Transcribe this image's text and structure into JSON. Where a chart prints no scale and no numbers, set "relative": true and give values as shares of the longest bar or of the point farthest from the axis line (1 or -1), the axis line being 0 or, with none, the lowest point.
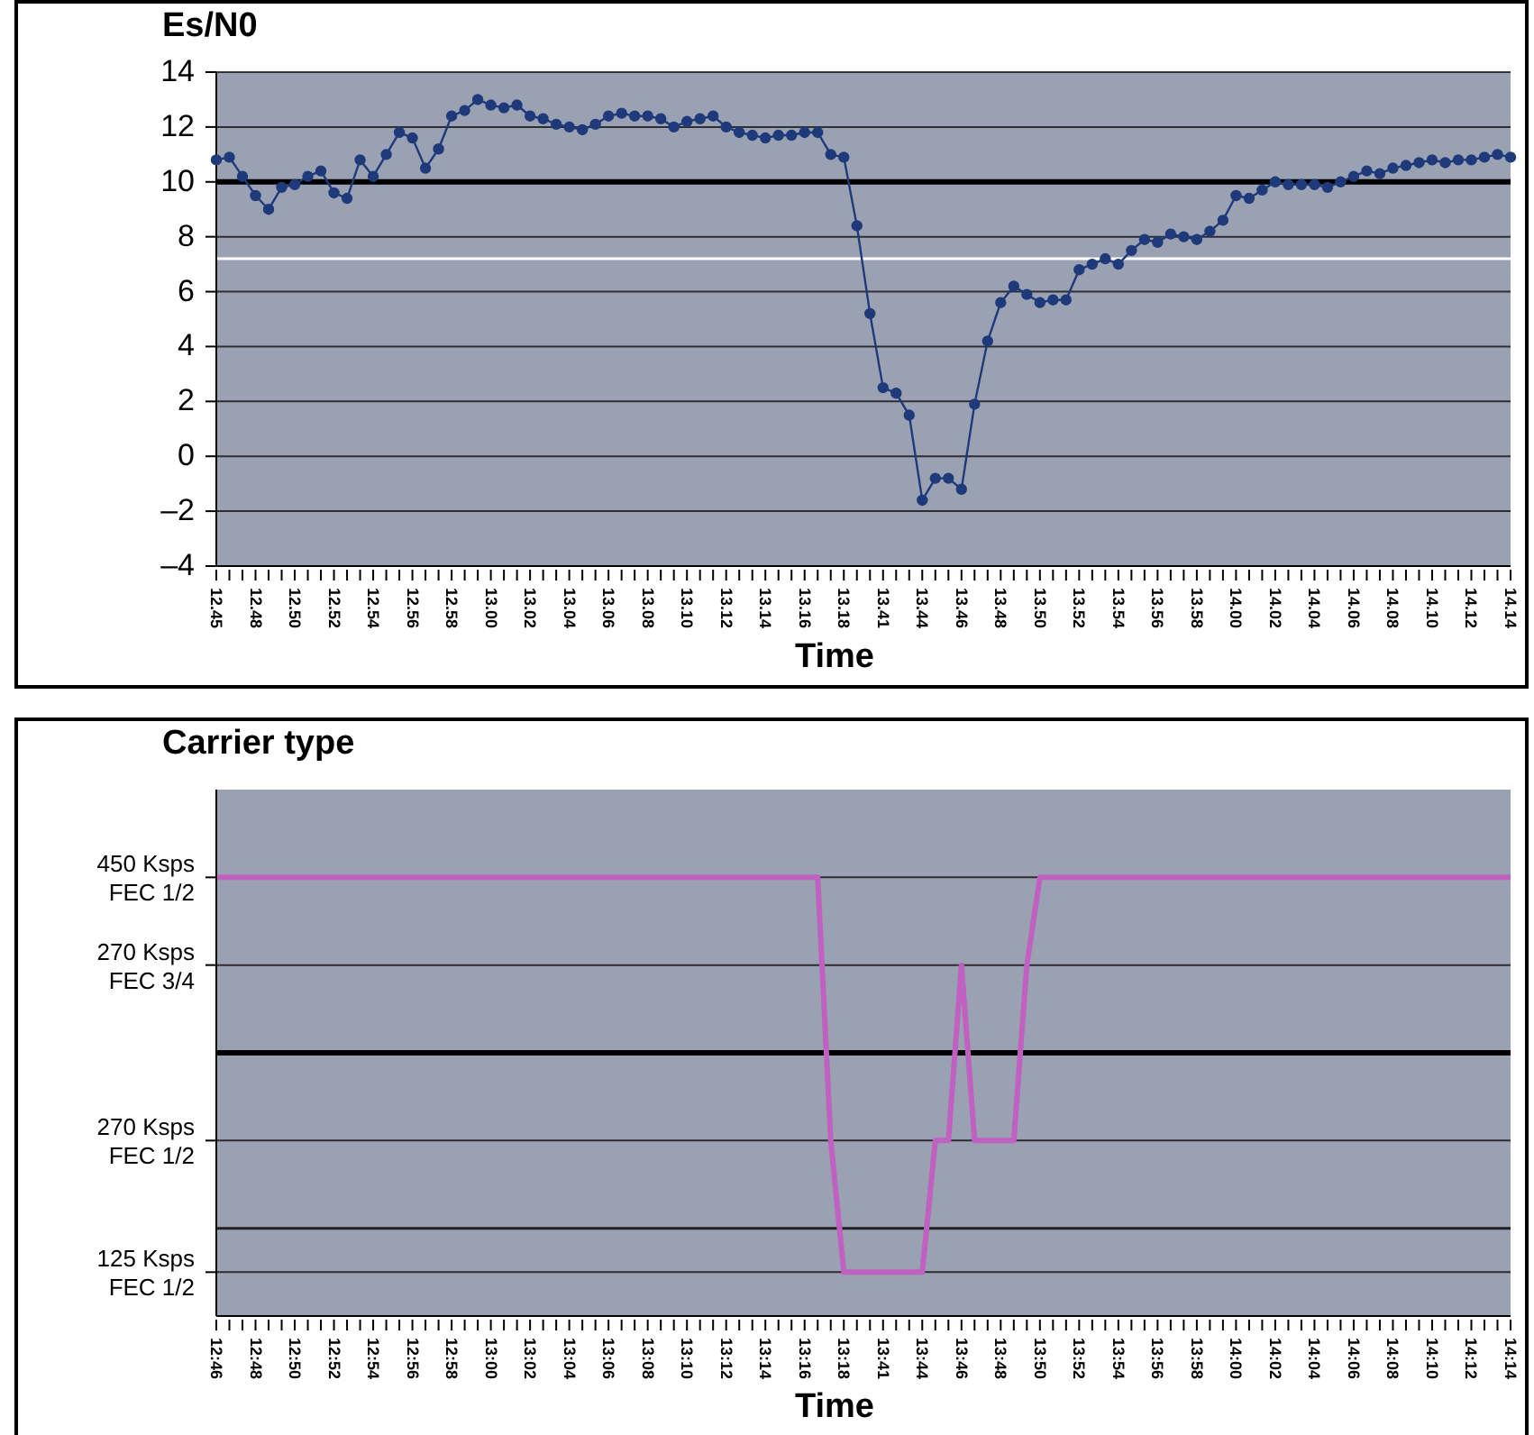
{
  "chart_data": [
    {
      "type": "line",
      "title": "Es/N0",
      "xlabel": "Time",
      "categories": [
        "12.45",
        null,
        null,
        "12.48",
        null,
        null,
        "12.50",
        null,
        null,
        "12.52",
        null,
        null,
        "12.54",
        null,
        null,
        "12.56",
        null,
        null,
        "12.58",
        null,
        null,
        "13.00",
        null,
        null,
        "13.02",
        null,
        null,
        "13.04",
        null,
        null,
        "13.06",
        null,
        null,
        "13.08",
        null,
        null,
        "13.10",
        null,
        null,
        "13.12",
        null,
        null,
        "13.14",
        null,
        null,
        "13.16",
        null,
        null,
        "13.18",
        null,
        null,
        "13.41",
        null,
        null,
        "13.44",
        null,
        null,
        "13.46",
        null,
        null,
        "13.48",
        null,
        null,
        "13.50",
        null,
        null,
        "13.52",
        null,
        null,
        "13.54",
        null,
        null,
        "13.56",
        null,
        null,
        "13.58",
        null,
        null,
        "14.00",
        null,
        null,
        "14.02",
        null,
        null,
        "14.04",
        null,
        null,
        "14.06",
        null,
        null,
        "14.08",
        null,
        null,
        "14.10",
        null,
        null,
        "14.12",
        null,
        null,
        "14.14"
      ],
      "series": [
        {
          "color": "#1f3a7a",
          "values": [
            10.8,
            10.9,
            10.2,
            9.5,
            9.0,
            9.8,
            9.9,
            10.2,
            10.4,
            9.6,
            9.4,
            10.8,
            10.2,
            11.0,
            11.8,
            11.6,
            10.5,
            11.2,
            12.4,
            12.6,
            13.0,
            12.8,
            12.7,
            12.8,
            12.4,
            12.3,
            12.1,
            12.0,
            11.9,
            12.1,
            12.4,
            12.5,
            12.4,
            12.4,
            12.3,
            12.0,
            12.2,
            12.3,
            12.4,
            12.0,
            11.8,
            11.7,
            11.6,
            11.7,
            11.7,
            11.8,
            11.8,
            11.0,
            10.9,
            8.4,
            5.2,
            2.5,
            2.3,
            1.5,
            -1.6,
            -0.8,
            -0.8,
            -1.2,
            1.9,
            4.2,
            5.6,
            6.2,
            5.9,
            5.6,
            5.7,
            5.7,
            6.8,
            7.0,
            7.2,
            7.0,
            7.5,
            7.9,
            7.8,
            8.1,
            8.0,
            7.9,
            8.2,
            8.6,
            9.5,
            9.4,
            9.7,
            10.0,
            9.9,
            9.9,
            9.9,
            9.8,
            10.0,
            10.2,
            10.4,
            10.3,
            10.5,
            10.6,
            10.7,
            10.8,
            10.7,
            10.8,
            10.8,
            10.9,
            11.0,
            10.9
          ]
        }
      ],
      "ylim": [
        -4,
        14
      ],
      "yticks": [
        {
          "value": -4,
          "label": "–4"
        },
        {
          "value": -2,
          "label": "–2"
        },
        0,
        2,
        4,
        6,
        8,
        10,
        12,
        14
      ],
      "ref_lines": [
        {
          "axis": "y",
          "value": 10,
          "color": "#000000"
        },
        {
          "axis": "y",
          "value": 7.2,
          "color": "#ffffff"
        }
      ],
      "grid": "y",
      "marker": "circle",
      "line_style": "solid"
    },
    {
      "type": "line",
      "title": "Carrier type",
      "xlabel": "Time",
      "categories": [
        "12:46",
        null,
        null,
        "12:48",
        null,
        null,
        "12:50",
        null,
        null,
        "12:52",
        null,
        null,
        "12:54",
        null,
        null,
        "12:56",
        null,
        null,
        "12:58",
        null,
        null,
        "13:00",
        null,
        null,
        "13:02",
        null,
        null,
        "13:04",
        null,
        null,
        "13:06",
        null,
        null,
        "13:08",
        null,
        null,
        "13:10",
        null,
        null,
        "13:12",
        null,
        null,
        "13:14",
        null,
        null,
        "13:16",
        null,
        null,
        "13:18",
        null,
        null,
        "13:41",
        null,
        null,
        "13:44",
        null,
        null,
        "13:46",
        null,
        null,
        "13:48",
        null,
        null,
        "13:50",
        null,
        null,
        "13:52",
        null,
        null,
        "13:54",
        null,
        null,
        "13:56",
        null,
        null,
        "13:58",
        null,
        null,
        "14:00",
        null,
        null,
        "14:02",
        null,
        null,
        "14:04",
        null,
        null,
        "14:06",
        null,
        null,
        "14:08",
        null,
        null,
        "14:10",
        null,
        null,
        "14:12",
        null,
        null,
        "14:14"
      ],
      "relative": true,
      "annotations": [
        "450 Ksps FEC 1/2",
        "270 Ksps FEC 3/4",
        "270 Ksps FEC 1/2",
        "125 Ksps FEC 1/2"
      ],
      "ref_lines": [
        {
          "axis": "y",
          "value": 0.6,
          "color": "#000000"
        },
        {
          "axis": "y",
          "value": 0.2,
          "color": "#222222"
        }
      ],
      "series": [
        {
          "color": "#c060c0",
          "values": [
            1,
            1,
            1,
            1,
            1,
            1,
            1,
            1,
            1,
            1,
            1,
            1,
            1,
            1,
            1,
            1,
            1,
            1,
            1,
            1,
            1,
            1,
            1,
            1,
            1,
            1,
            1,
            1,
            1,
            1,
            1,
            1,
            1,
            1,
            1,
            1,
            1,
            1,
            1,
            1,
            1,
            1,
            1,
            1,
            1,
            1,
            1,
            0.4,
            0.1,
            0.1,
            0.1,
            0.1,
            0.1,
            0.1,
            0.1,
            0.4,
            0.4,
            0.8,
            0.4,
            0.4,
            0.4,
            0.4,
            0.8,
            1,
            1,
            1,
            1,
            1,
            1,
            1,
            1,
            1,
            1,
            1,
            1,
            1,
            1,
            1,
            1,
            1,
            1,
            1,
            1,
            1,
            1,
            1,
            1,
            1,
            1,
            1,
            1,
            1,
            1,
            1,
            1,
            1,
            1,
            1,
            1,
            1
          ]
        }
      ],
      "grid": "y",
      "marker": "none",
      "line_style": "solid"
    }
  ]
}
